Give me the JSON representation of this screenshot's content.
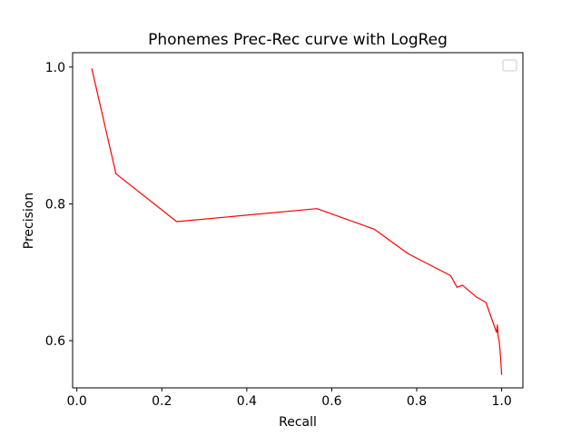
{
  "chart_data": {
    "type": "line",
    "title": "Phonemes Prec-Rec curve with LogReg",
    "xlabel": "Recall",
    "ylabel": "Precision",
    "xlim": [
      -0.01,
      1.05
    ],
    "ylim": [
      0.531,
      1.021
    ],
    "xticks": [
      0.0,
      0.2,
      0.4,
      0.6,
      0.8,
      1.0
    ],
    "xtick_labels": [
      "0.0",
      "0.2",
      "0.4",
      "0.6",
      "0.8",
      "1.0"
    ],
    "yticks": [
      0.6,
      0.8,
      1.0
    ],
    "ytick_labels": [
      "0.6",
      "0.8",
      "1.0"
    ],
    "grid": false,
    "legend": {
      "location": "upper right",
      "entries": []
    },
    "series": [
      {
        "color": "#ff0000",
        "x": [
          0.035,
          0.092,
          0.235,
          0.565,
          0.7,
          0.78,
          0.88,
          0.895,
          0.908,
          0.94,
          0.963,
          0.988,
          0.99,
          0.992,
          0.994,
          0.997,
          1.0
        ],
        "y": [
          0.998,
          0.844,
          0.774,
          0.793,
          0.763,
          0.727,
          0.695,
          0.678,
          0.681,
          0.664,
          0.656,
          0.612,
          0.623,
          0.605,
          0.6,
          0.58,
          0.55
        ]
      }
    ]
  }
}
